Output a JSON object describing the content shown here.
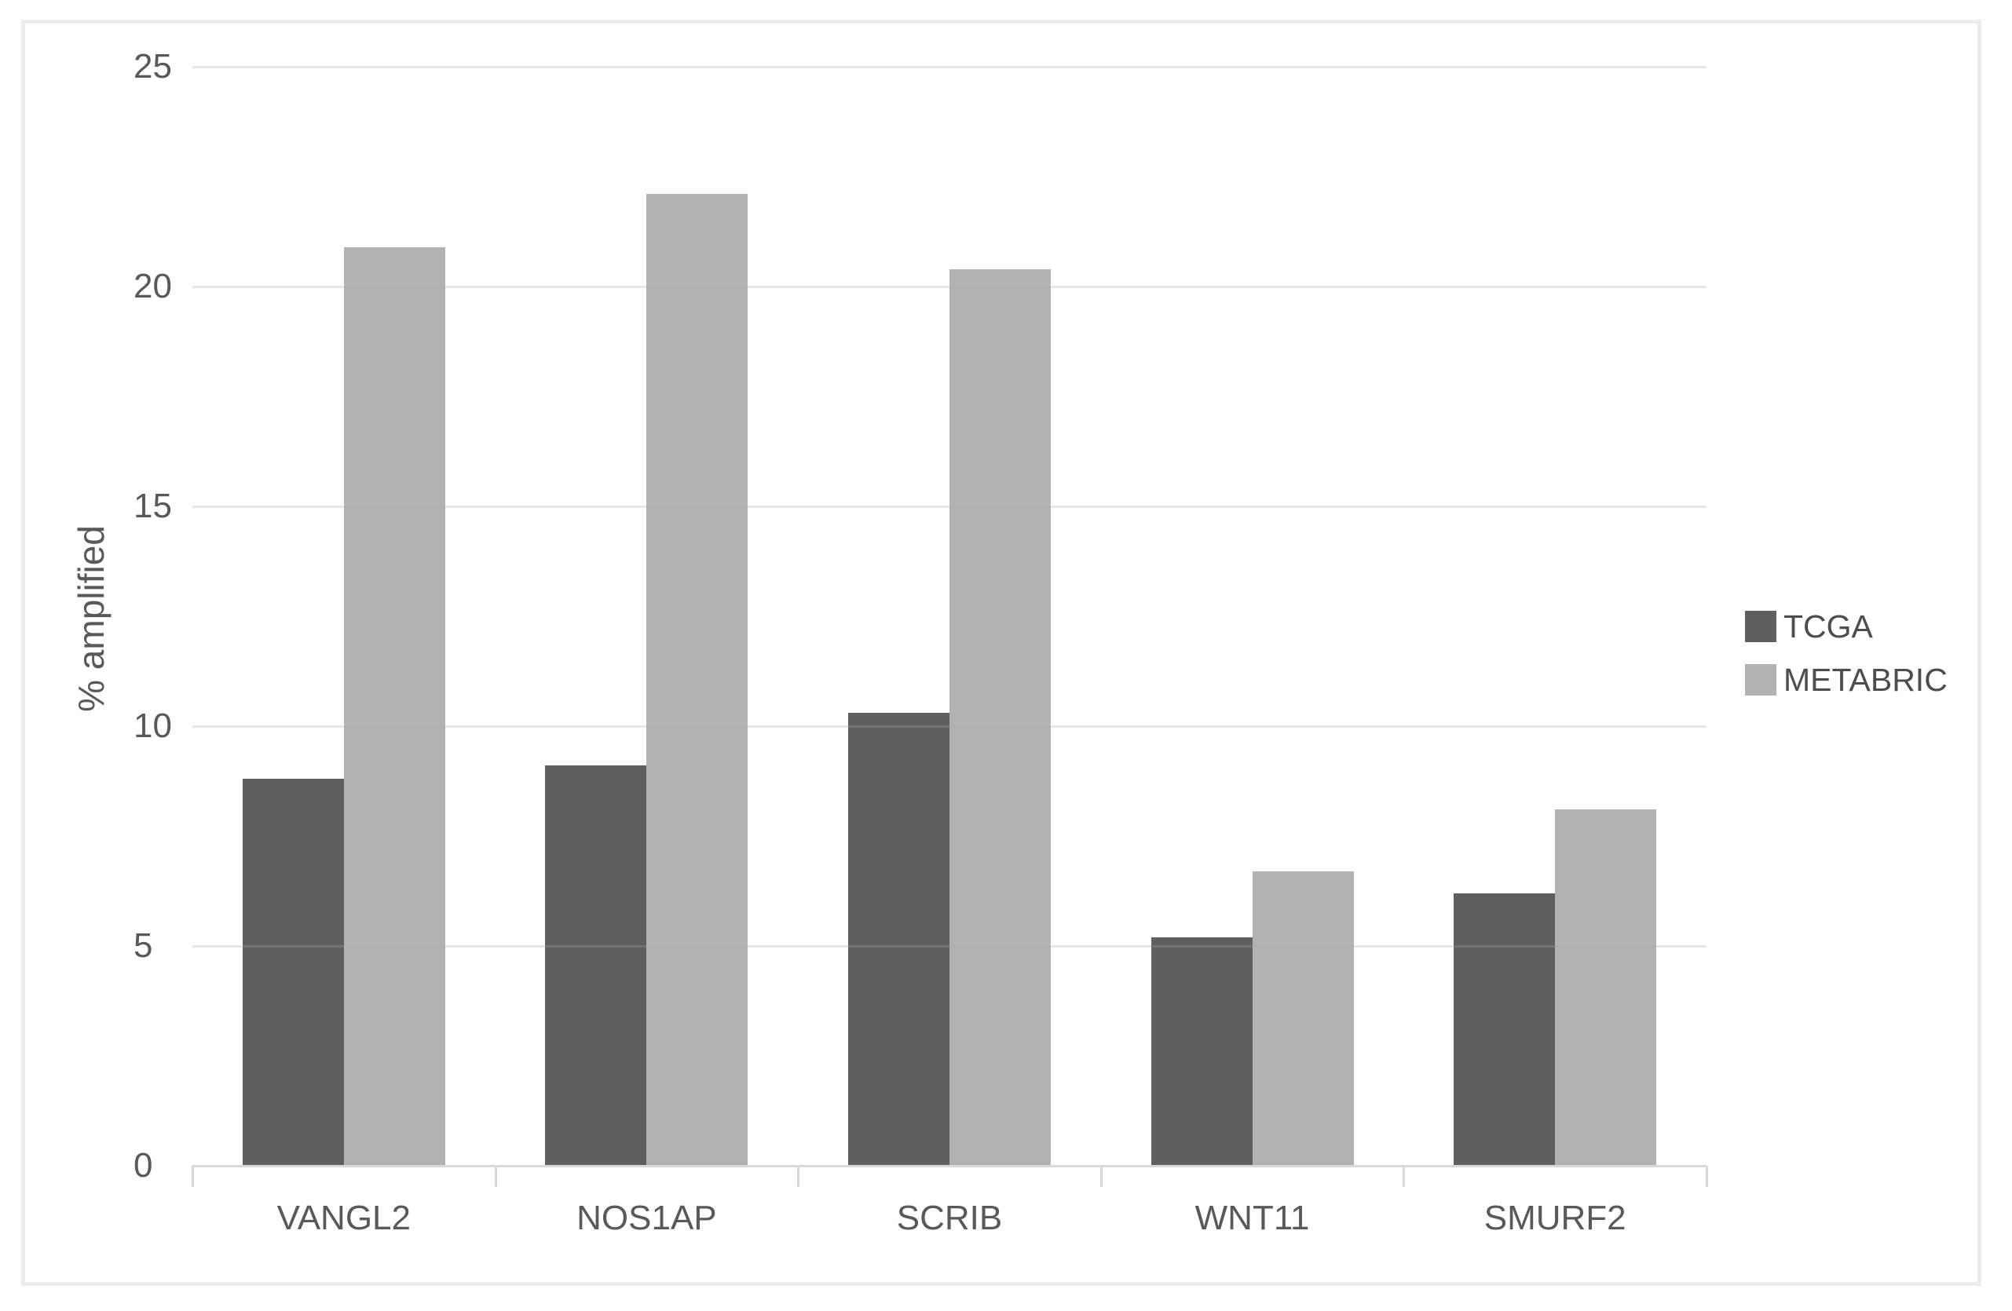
{
  "chart_data": {
    "type": "bar",
    "categories": [
      "VANGL2",
      "NOS1AP",
      "SCRIB",
      "WNT11",
      "SMURF2"
    ],
    "series": [
      {
        "name": "TCGA",
        "color": "#5f5f5f",
        "values": [
          8.8,
          9.1,
          10.3,
          5.2,
          6.2
        ]
      },
      {
        "name": "METABRIC",
        "color": "#b2b2b2",
        "values": [
          20.9,
          22.1,
          20.4,
          6.7,
          8.1
        ]
      }
    ],
    "title": "",
    "xlabel": "",
    "ylabel": "% amplified",
    "ylim": [
      0,
      25
    ],
    "yticks": [
      0,
      5,
      10,
      15,
      20,
      25
    ],
    "grid": "horizontal",
    "legend_position": "right"
  },
  "colors": {
    "gridline": "rgba(170,170,170,0.28)",
    "axis_line": "#d9d9d9",
    "tick_text": "#595959",
    "legend_text": "#4d4d4d",
    "canvas_border": "#ececec",
    "background": "#ffffff"
  }
}
